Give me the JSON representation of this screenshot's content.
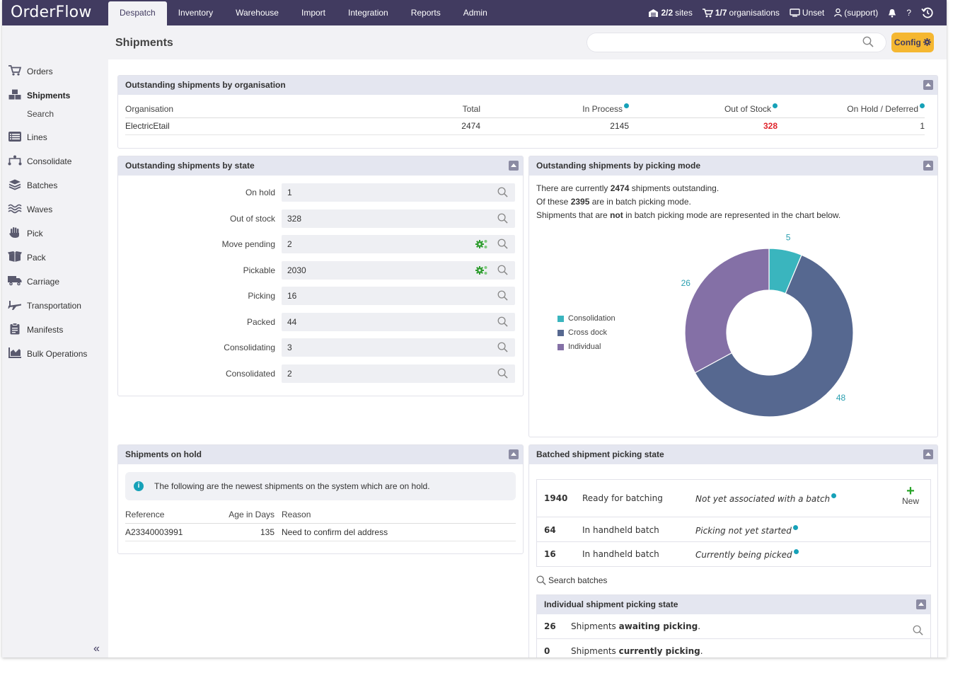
{
  "app": {
    "logo": "OrderFlow",
    "nav": [
      "Despatch",
      "Inventory",
      "Warehouse",
      "Import",
      "Integration",
      "Reports",
      "Admin"
    ],
    "active_nav": "Despatch",
    "sites": {
      "count": "2/2",
      "label": "sites"
    },
    "orgs": {
      "count": "1/7",
      "label": "organisations"
    },
    "device": "Unset",
    "user": "(support)",
    "help": "?"
  },
  "sidebar": {
    "items": [
      {
        "label": "Orders",
        "icon": "cart-icon"
      },
      {
        "label": "Shipments",
        "icon": "boxes-icon"
      },
      {
        "label": "Lines",
        "icon": "list-icon"
      },
      {
        "label": "Consolidate",
        "icon": "merge-icon"
      },
      {
        "label": "Batches",
        "icon": "layers-icon"
      },
      {
        "label": "Waves",
        "icon": "waves-icon"
      },
      {
        "label": "Pick",
        "icon": "hand-icon"
      },
      {
        "label": "Pack",
        "icon": "box-icon"
      },
      {
        "label": "Carriage",
        "icon": "truck-icon"
      },
      {
        "label": "Transportation",
        "icon": "plane-icon"
      },
      {
        "label": "Manifests",
        "icon": "clipboard-icon"
      },
      {
        "label": "Bulk Operations",
        "icon": "chart-icon"
      }
    ],
    "sub_item": "Search",
    "collapse": "«"
  },
  "header": {
    "title": "Shipments",
    "search_placeholder": "",
    "config_label": "Config"
  },
  "org_panel": {
    "title": "Outstanding shipments by organisation",
    "columns": [
      "Organisation",
      "Total",
      "In Process",
      "Out of Stock",
      "On Hold / Deferred"
    ],
    "rows": [
      {
        "organisation": "ElectricEtail",
        "total": "2474",
        "in_process": "2145",
        "out_of_stock": "328",
        "on_hold": "1"
      }
    ]
  },
  "state_panel": {
    "title": "Outstanding shipments by state",
    "rows": [
      {
        "label": "On hold",
        "value": "1",
        "cog": false
      },
      {
        "label": "Out of stock",
        "value": "328",
        "cog": false
      },
      {
        "label": "Move pending",
        "value": "2",
        "cog": true
      },
      {
        "label": "Pickable",
        "value": "2030",
        "cog": true
      },
      {
        "label": "Picking",
        "value": "16",
        "cog": false
      },
      {
        "label": "Packed",
        "value": "44",
        "cog": false
      },
      {
        "label": "Consolidating",
        "value": "3",
        "cog": false
      },
      {
        "label": "Consolidated",
        "value": "2",
        "cog": false
      }
    ]
  },
  "picking_panel": {
    "title": "Outstanding shipments by picking mode",
    "line1_pre": "There are currently",
    "line1_num": "2474",
    "line1_post": "shipments outstanding.",
    "line2_pre": "Of these",
    "line2_num": "2395",
    "line2_post": "are in batch picking mode.",
    "line3_pre": "Shipments that are",
    "line3_bold": "not",
    "line3_post": "in batch picking mode are represented in the chart below."
  },
  "chart_data": {
    "type": "pie",
    "categories": [
      "Consolidation",
      "Cross dock",
      "Individual"
    ],
    "values": [
      5,
      48,
      26
    ],
    "colors": [
      "#3ab5be",
      "#566890",
      "#8470a6"
    ],
    "legend": "left"
  },
  "hold_panel": {
    "title": "Shipments on hold",
    "info": "The following are the newest shipments on the system which are on hold.",
    "columns": [
      "Reference",
      "Age in Days",
      "Reason"
    ],
    "rows": [
      {
        "reference": "A23340003991",
        "age": "135",
        "reason": "Need to confirm del address"
      }
    ]
  },
  "batch_panel": {
    "title": "Batched shipment picking state",
    "rows": [
      {
        "count": "1940",
        "state": "Ready for batching",
        "desc": "Not yet associated with a batch"
      },
      {
        "count": "64",
        "state": "In handheld batch",
        "desc": "Picking not yet started"
      },
      {
        "count": "16",
        "state": "In handheld batch",
        "desc": "Currently being picked"
      }
    ],
    "new_label": "New",
    "search_label": "Search batches",
    "sub_title": "Individual shipment picking state",
    "sub_rows": [
      {
        "count": "26",
        "pre": "Shipments",
        "bold": "awaiting picking",
        "post": "."
      },
      {
        "count": "0",
        "pre": "Shipments",
        "bold": "currently picking",
        "post": "."
      }
    ]
  }
}
